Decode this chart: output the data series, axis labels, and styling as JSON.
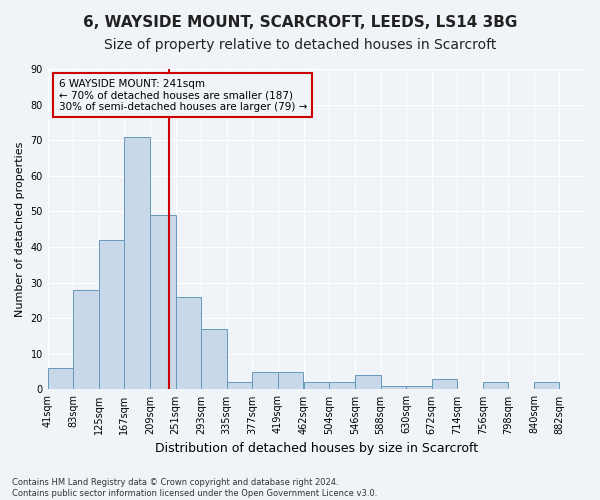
{
  "title_line1": "6, WAYSIDE MOUNT, SCARCROFT, LEEDS, LS14 3BG",
  "title_line2": "Size of property relative to detached houses in Scarcroft",
  "xlabel": "Distribution of detached houses by size in Scarcroft",
  "ylabel": "Number of detached properties",
  "footnote": "Contains HM Land Registry data © Crown copyright and database right 2024.\nContains public sector information licensed under the Open Government Licence v3.0.",
  "annotation_line1": "6 WAYSIDE MOUNT: 241sqm",
  "annotation_line2": "← 70% of detached houses are smaller (187)",
  "annotation_line3": "30% of semi-detached houses are larger (79) →",
  "bar_values": [
    6,
    28,
    42,
    71,
    49,
    26,
    17,
    2,
    5,
    5,
    2,
    2,
    4,
    1,
    1,
    3,
    0,
    2,
    0,
    2
  ],
  "bin_labels": [
    "41sqm",
    "83sqm",
    "125sqm",
    "167sqm",
    "209sqm",
    "251sqm",
    "293sqm",
    "335sqm",
    "377sqm",
    "419sqm",
    "462sqm",
    "504sqm",
    "546sqm",
    "588sqm",
    "630sqm",
    "672sqm",
    "714sqm",
    "756sqm",
    "798sqm",
    "840sqm",
    "882sqm"
  ],
  "bin_edges": [
    41,
    83,
    125,
    167,
    209,
    251,
    293,
    335,
    377,
    419,
    462,
    504,
    546,
    588,
    630,
    672,
    714,
    756,
    798,
    840,
    882
  ],
  "bar_color": "#c8d8e8",
  "bar_edge_color": "#6699bb",
  "vline_x": 241,
  "vline_color": "#cc0000",
  "annotation_box_color": "#cc0000",
  "ylim": [
    0,
    90
  ],
  "yticks": [
    0,
    10,
    20,
    30,
    40,
    50,
    60,
    70,
    80,
    90
  ],
  "bg_color": "#f0f4f8",
  "grid_color": "#ffffff",
  "title_fontsize": 11,
  "subtitle_fontsize": 10
}
